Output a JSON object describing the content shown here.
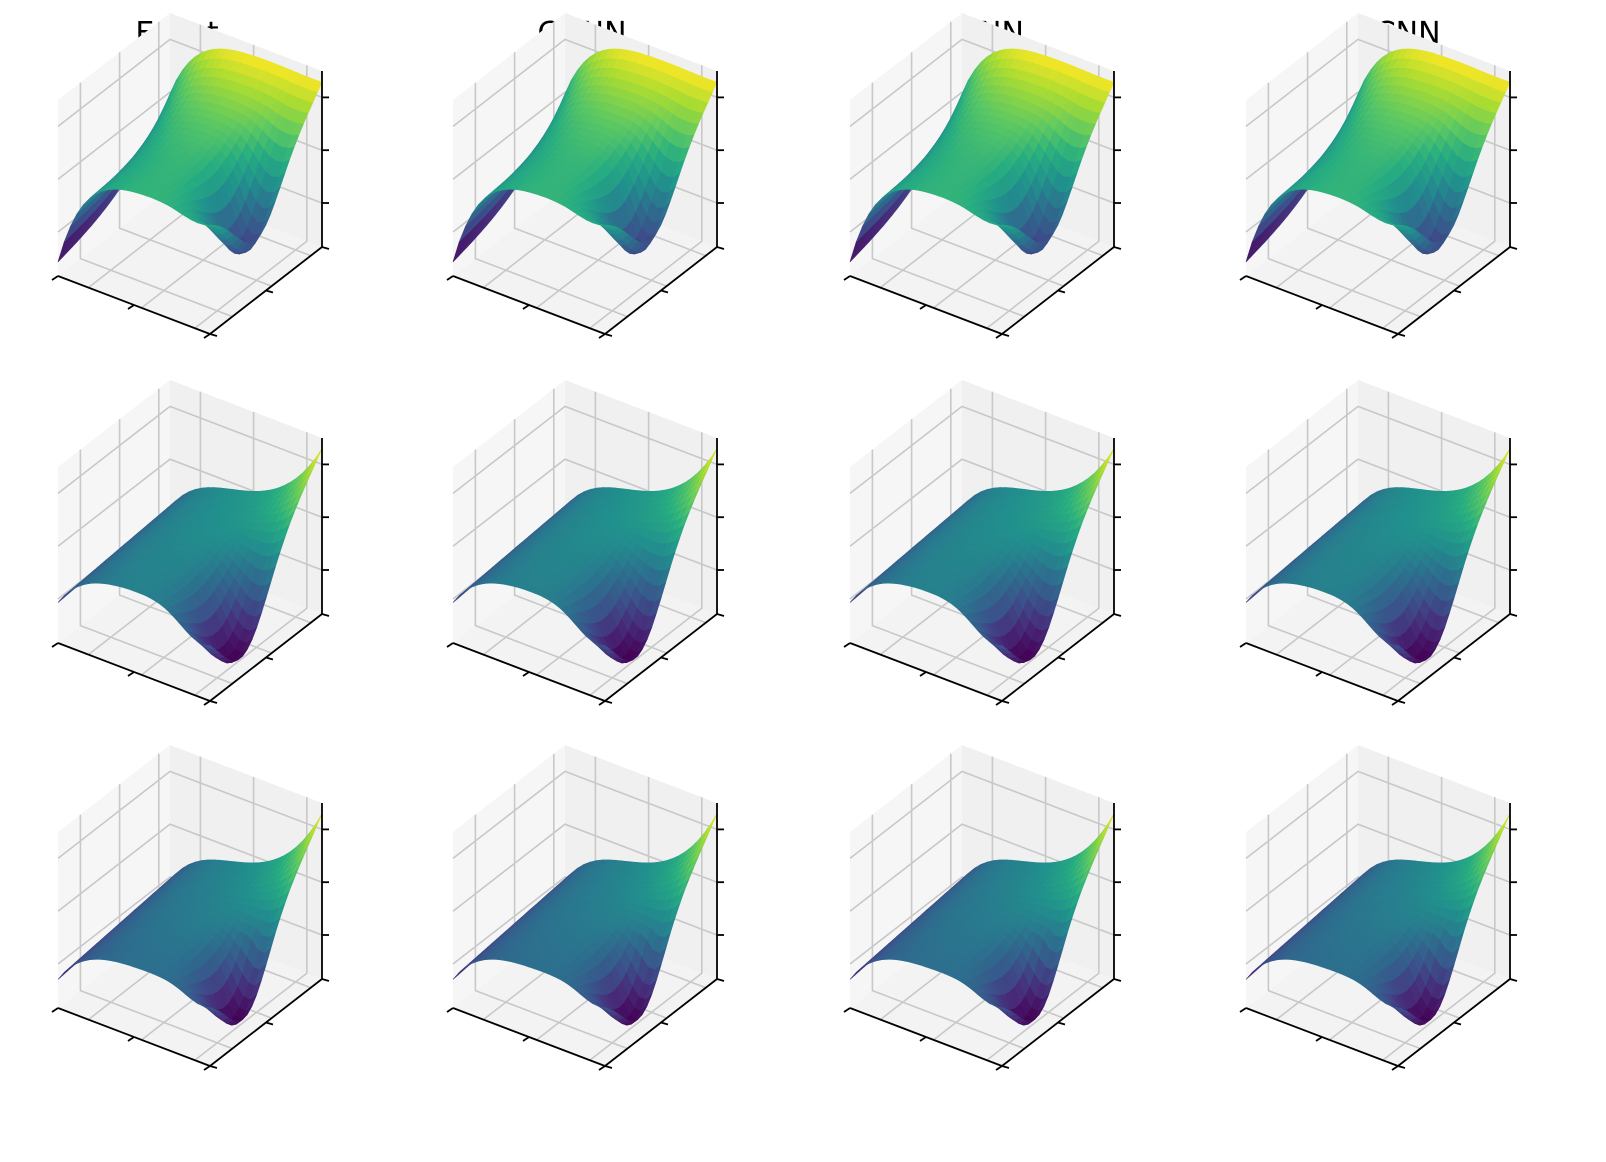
{
  "figure": {
    "columns": [
      "Exact",
      "GCNN",
      "CNN",
      "FCNN"
    ],
    "rows": 3,
    "colormap": "viridis",
    "pane_color": "#f2f2f2",
    "grid_color": "#c8c8c8",
    "axis_color": "#000000"
  },
  "chart_data": [
    {
      "type": "surface",
      "title": "Exact",
      "row": 1,
      "col": 1,
      "grid": true,
      "tick_labels": false,
      "colormap": "viridis"
    },
    {
      "type": "surface",
      "title": "GCNN",
      "row": 1,
      "col": 2,
      "grid": true,
      "tick_labels": false,
      "colormap": "viridis"
    },
    {
      "type": "surface",
      "title": "CNN",
      "row": 1,
      "col": 3,
      "grid": true,
      "tick_labels": false,
      "colormap": "viridis"
    },
    {
      "type": "surface",
      "title": "FCNN",
      "row": 1,
      "col": 4,
      "grid": true,
      "tick_labels": false,
      "colormap": "viridis"
    },
    {
      "type": "surface",
      "row": 2,
      "col": 1,
      "grid": true,
      "tick_labels": false,
      "colormap": "viridis"
    },
    {
      "type": "surface",
      "row": 2,
      "col": 2,
      "grid": true,
      "tick_labels": false,
      "colormap": "viridis"
    },
    {
      "type": "surface",
      "row": 2,
      "col": 3,
      "grid": true,
      "tick_labels": false,
      "colormap": "viridis"
    },
    {
      "type": "surface",
      "row": 2,
      "col": 4,
      "grid": true,
      "tick_labels": false,
      "colormap": "viridis"
    },
    {
      "type": "surface",
      "row": 3,
      "col": 1,
      "grid": true,
      "tick_labels": false,
      "colormap": "viridis"
    },
    {
      "type": "surface",
      "row": 3,
      "col": 2,
      "grid": true,
      "tick_labels": false,
      "colormap": "viridis"
    },
    {
      "type": "surface",
      "row": 3,
      "col": 3,
      "grid": true,
      "tick_labels": false,
      "colormap": "viridis"
    },
    {
      "type": "surface",
      "row": 3,
      "col": 4,
      "grid": true,
      "tick_labels": false,
      "colormap": "viridis"
    }
  ]
}
